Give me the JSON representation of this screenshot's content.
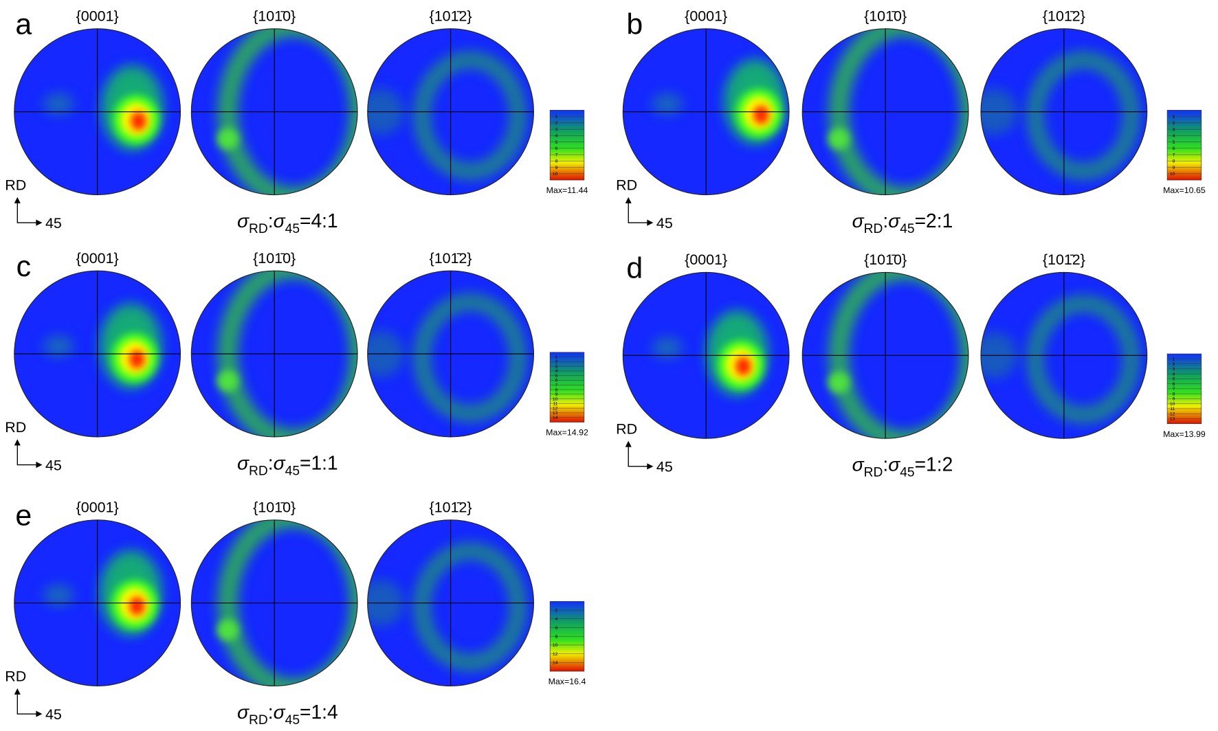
{
  "panels": [
    {
      "label": "a",
      "titles": [
        "{0001}",
        "{101̄0}",
        "{101̄2}"
      ],
      "axis": {
        "rd": "RD",
        "x": "45"
      },
      "ratio": {
        "sym1": "σ",
        "sub1": "RD",
        "sep": ":",
        "sym2": "σ",
        "sub2": "45",
        "value": "=4:1"
      },
      "colorbar": {
        "ticks": [
          1,
          2,
          3,
          4,
          5,
          6,
          7,
          8,
          9,
          10
        ],
        "max": "Max=11.44"
      }
    },
    {
      "label": "b",
      "titles": [
        "{0001}",
        "{101̄0}",
        "{101̄2}"
      ],
      "axis": {
        "rd": "RD",
        "x": "45"
      },
      "ratio": {
        "sym1": "σ",
        "sub1": "RD",
        "sep": ":",
        "sym2": "σ",
        "sub2": "45",
        "value": "=2:1"
      },
      "colorbar": {
        "ticks": [
          1,
          2,
          3,
          4,
          5,
          6,
          7,
          8,
          9,
          10
        ],
        "max": "Max=10.65"
      }
    },
    {
      "label": "c",
      "titles": [
        "{0001}",
        "{101̄0}",
        "{101̄2}"
      ],
      "axis": {
        "rd": "RD",
        "x": "45"
      },
      "ratio": {
        "sym1": "σ",
        "sub1": "RD",
        "sep": ":",
        "sym2": "σ",
        "sub2": "45",
        "value": "=1:1"
      },
      "colorbar": {
        "ticks": [
          1,
          2,
          3,
          4,
          5,
          6,
          7,
          8,
          9,
          10,
          11,
          12,
          13,
          14
        ],
        "max": "Max=14.92"
      }
    },
    {
      "label": "d",
      "titles": [
        "{0001}",
        "{101̄0}",
        "{101̄2}"
      ],
      "axis": {
        "rd": "RD",
        "x": "45"
      },
      "ratio": {
        "sym1": "σ",
        "sub1": "RD",
        "sep": ":",
        "sym2": "σ",
        "sub2": "45",
        "value": "=1:2"
      },
      "colorbar": {
        "ticks": [
          1,
          2,
          3,
          4,
          5,
          6,
          7,
          8,
          9,
          10,
          11,
          12,
          13
        ],
        "max": "Max=13.99"
      }
    },
    {
      "label": "e",
      "titles": [
        "{0001}",
        "{101̄0}",
        "{101̄2}"
      ],
      "axis": {
        "rd": "RD",
        "x": "45"
      },
      "ratio": {
        "sym1": "σ",
        "sub1": "RD",
        "sep": ":",
        "sym2": "σ",
        "sub2": "45",
        "value": "=1:4"
      },
      "colorbar": {
        "ticks": [
          2,
          4,
          6,
          8,
          10,
          12,
          14
        ],
        "max": "Max=16.4"
      }
    }
  ]
}
